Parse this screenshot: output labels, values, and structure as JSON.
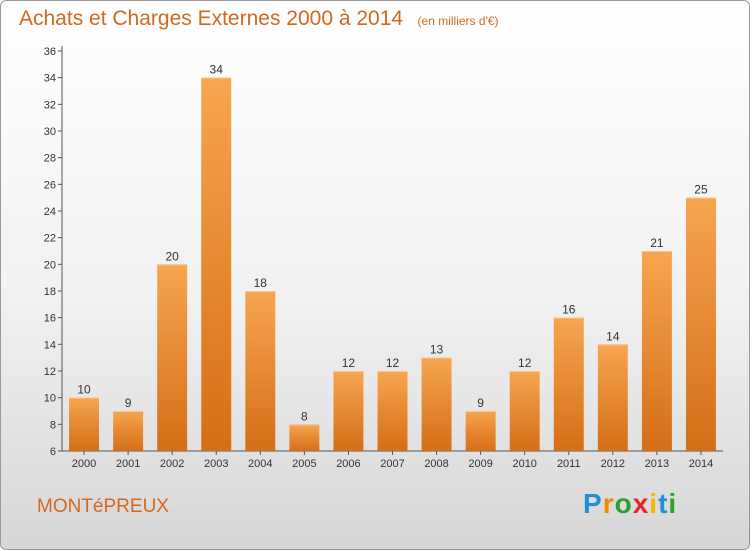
{
  "header": {
    "title": "Achats et Charges Externes 2000 à 2014",
    "unit": "(en milliers d'€)"
  },
  "footer": {
    "town": "MONTéPREUX",
    "brand_letters": [
      "P",
      "r",
      "o",
      "x",
      "i",
      "t",
      "i"
    ],
    "brand_colors": [
      "#1e90d6",
      "#f08a00",
      "#2ca02c",
      "#e8222b",
      "#f5b800",
      "#1e90d6",
      "#2ca02c"
    ]
  },
  "chart_data": {
    "type": "bar",
    "categories": [
      "2000",
      "2001",
      "2002",
      "2003",
      "2004",
      "2005",
      "2006",
      "2007",
      "2008",
      "2009",
      "2010",
      "2011",
      "2012",
      "2013",
      "2014"
    ],
    "values": [
      10,
      9,
      20,
      34,
      18,
      8,
      12,
      12,
      13,
      9,
      12,
      16,
      14,
      21,
      25
    ],
    "title": "Achats et Charges Externes 2000 à 2014",
    "ylim": [
      6,
      36
    ],
    "yticks": [
      6,
      8,
      10,
      12,
      14,
      16,
      18,
      20,
      22,
      24,
      26,
      28,
      30,
      32,
      34,
      36
    ],
    "grid": false,
    "bar_color": "#f0922e"
  }
}
